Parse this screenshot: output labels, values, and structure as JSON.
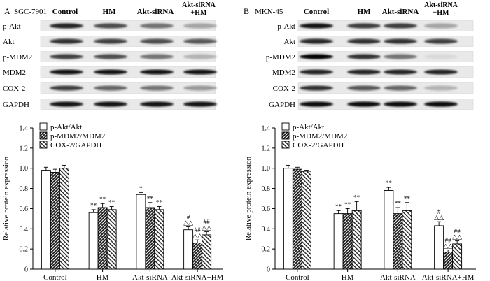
{
  "panels": [
    {
      "letter": "A",
      "cell_line": "SGC-7901",
      "columns": [
        "Control",
        "HM",
        "Akt-siRNA",
        "Akt-siRNA\n+HM"
      ],
      "blot_labels": [
        "p-Akt",
        "Akt",
        "p-MDM2",
        "MDM2",
        "COX-2",
        "GAPDH"
      ]
    },
    {
      "letter": "B",
      "cell_line": "MKN-45",
      "columns": [
        "Control",
        "HM",
        "Akt-siRNA",
        "Akt-siRNA\n+HM"
      ],
      "blot_labels": [
        "p-Akt",
        "Akt",
        "p-MDM2",
        "MDM2",
        "COX-2",
        "GAPDH"
      ]
    }
  ],
  "chart_data": [
    {
      "type": "bar",
      "title": "",
      "xlabel": "",
      "ylabel": "Relative protein expression",
      "ylim": [
        0,
        1.4
      ],
      "yticks": [
        "0",
        "0.2",
        "0.4",
        "0.6",
        "0.8",
        "1.0",
        "1.2",
        "1.4"
      ],
      "categories": [
        "Control",
        "HM",
        "Akt-siRNA",
        "Akt-siRNA+HM"
      ],
      "legend_position": "top-left",
      "series": [
        {
          "name": "p-Akt/Akt",
          "values": [
            0.98,
            0.56,
            0.74,
            0.39
          ],
          "errors": [
            0.03,
            0.03,
            0.02,
            0.03
          ],
          "fill": "white"
        },
        {
          "name": "p-MDM2/MDM2",
          "values": [
            0.96,
            0.61,
            0.61,
            0.26
          ],
          "errors": [
            0.03,
            0.04,
            0.05,
            0.03
          ],
          "fill": "hatch-dark"
        },
        {
          "name": "COX-2/GAPDH",
          "values": [
            1.0,
            0.59,
            0.59,
            0.34
          ],
          "errors": [
            0.03,
            0.03,
            0.03,
            0.03
          ],
          "fill": "hatch-light"
        }
      ],
      "annotations": [
        [
          "",
          "",
          ""
        ],
        [
          "**",
          "**",
          "**"
        ],
        [
          "*",
          "**",
          "**"
        ],
        [
          "#\n△△",
          "##\n△△",
          "##\n△△"
        ]
      ]
    },
    {
      "type": "bar",
      "title": "",
      "xlabel": "",
      "ylabel": "Relative protein expression",
      "ylim": [
        0,
        1.4
      ],
      "yticks": [
        "0",
        "0.2",
        "0.4",
        "0.6",
        "0.8",
        "1.0",
        "1.2",
        "1.4"
      ],
      "categories": [
        "Control",
        "HM",
        "Akt-siRNA",
        "Akt-siRNA+HM"
      ],
      "legend_position": "top-left",
      "series": [
        {
          "name": "p-Akt/Akt",
          "values": [
            1.0,
            0.55,
            0.78,
            0.43
          ],
          "errors": [
            0.03,
            0.03,
            0.03,
            0.04
          ],
          "fill": "white"
        },
        {
          "name": "p-MDM2/MDM2",
          "values": [
            0.99,
            0.55,
            0.55,
            0.17
          ],
          "errors": [
            0.02,
            0.05,
            0.06,
            0.02
          ],
          "fill": "hatch-dark"
        },
        {
          "name": "COX-2/GAPDH",
          "values": [
            0.97,
            0.58,
            0.58,
            0.25
          ],
          "errors": [
            0.01,
            0.09,
            0.08,
            0.03
          ],
          "fill": "hatch-light"
        }
      ],
      "annotations": [
        [
          "",
          "",
          ""
        ],
        [
          "**",
          "**",
          "**"
        ],
        [
          "**",
          "**",
          "**"
        ],
        [
          "#\n△△",
          "##\n△△",
          "##\n△△"
        ]
      ]
    }
  ]
}
